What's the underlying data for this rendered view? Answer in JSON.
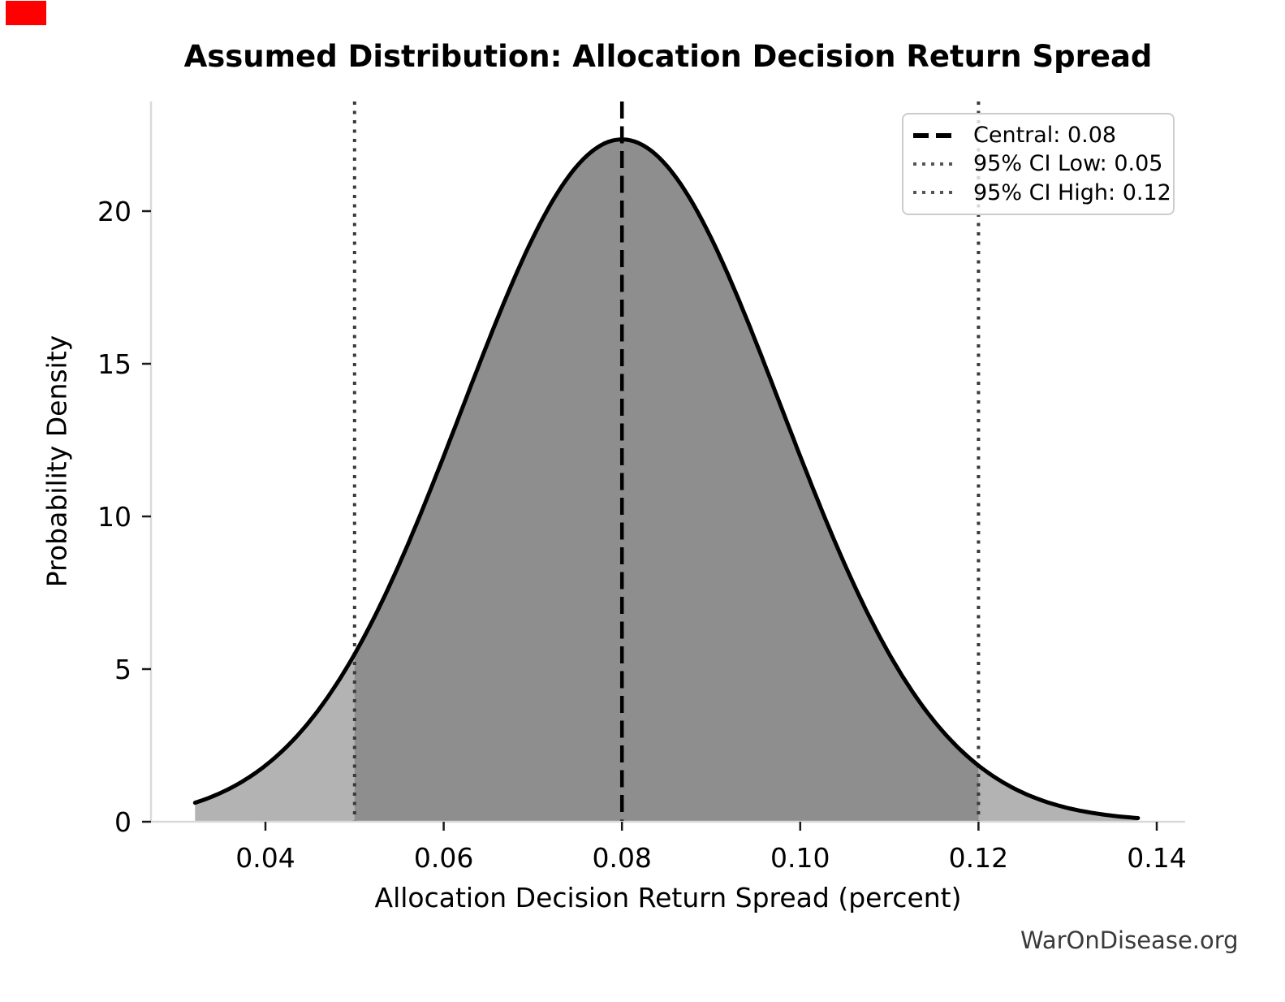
{
  "overlay": {
    "recording_marker_color": "#ff0000"
  },
  "chart_data": {
    "type": "area",
    "title": "Assumed Distribution: Allocation Decision Return Spread",
    "xlabel": "Allocation Decision Return Spread (percent)",
    "ylabel": "Probability Density",
    "watermark": "WarOnDisease.org",
    "grid": false,
    "legend_position": "upper right",
    "xlim": [
      0.027,
      0.143
    ],
    "ylim": [
      0,
      23.6
    ],
    "xticks": {
      "values": [
        0.04,
        0.06,
        0.08,
        0.1,
        0.12,
        0.14
      ],
      "labels": [
        "0.04",
        "0.06",
        "0.08",
        "0.10",
        "0.12",
        "0.14"
      ]
    },
    "yticks": {
      "values": [
        0,
        5,
        10,
        15,
        20
      ],
      "labels": [
        "0",
        "5",
        "10",
        "15",
        "20"
      ]
    },
    "distribution": {
      "type": "normal",
      "mean": 0.08,
      "sigma": 0.0179,
      "peak_density": 22.35,
      "x_range": [
        0.0321,
        0.1379
      ]
    },
    "series": [
      {
        "name": "density",
        "x": [
          0.0321,
          0.035,
          0.04,
          0.045,
          0.05,
          0.055,
          0.06,
          0.065,
          0.07,
          0.075,
          0.08,
          0.085,
          0.09,
          0.095,
          0.1,
          0.105,
          0.11,
          0.115,
          0.12,
          0.125,
          0.13,
          0.135,
          0.1379
        ],
        "y": [
          0.62,
          0.95,
          1.84,
          3.3,
          5.48,
          8.41,
          11.95,
          15.7,
          19.08,
          21.45,
          22.35,
          21.45,
          19.08,
          15.7,
          11.95,
          8.41,
          5.48,
          3.3,
          1.84,
          0.95,
          0.45,
          0.2,
          0.12
        ]
      }
    ],
    "markers": {
      "central": {
        "value": 0.08,
        "style": "dashed",
        "color": "#000000"
      },
      "ci_low": {
        "value": 0.05,
        "style": "dotted",
        "color": "#3a3a3a"
      },
      "ci_high": {
        "value": 0.12,
        "style": "dotted",
        "color": "#3a3a3a"
      }
    },
    "legend": [
      {
        "label": "Central: 0.08",
        "style": "dashed",
        "color": "#000000"
      },
      {
        "label": "95% CI Low: 0.05",
        "style": "dotted",
        "color": "#555555"
      },
      {
        "label": "95% CI High: 0.12",
        "style": "dotted",
        "color": "#555555"
      }
    ],
    "colors": {
      "curve": "#000000",
      "fill_inside_ci": "#8e8e8e",
      "fill_outside_ci": "#b3b3b3",
      "spine": "#d9d9d9",
      "tick": "#1a1a1a"
    }
  }
}
